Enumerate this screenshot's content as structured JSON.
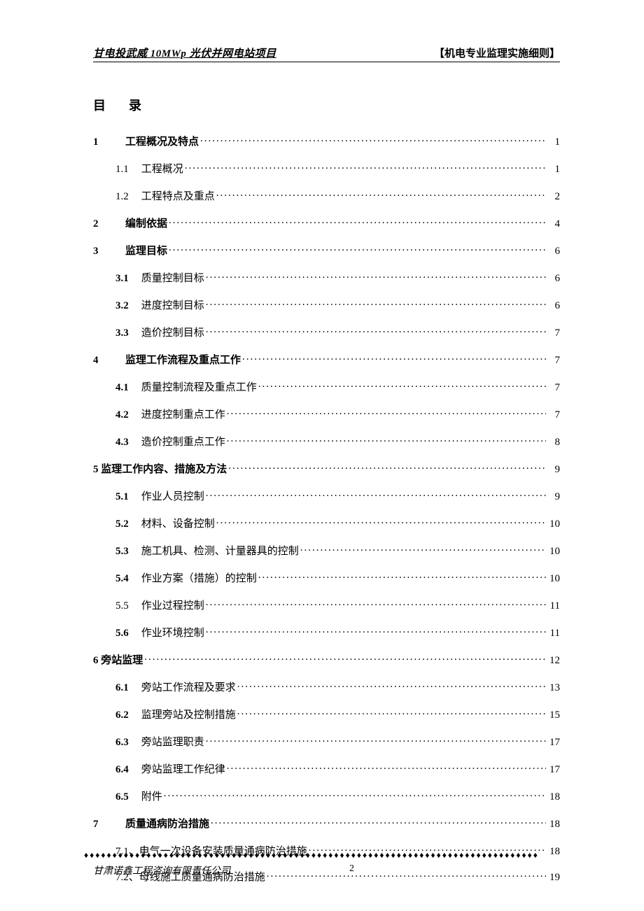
{
  "header": {
    "left": "甘电投武威 10MWp 光伏并网电站项目",
    "right": "【机电专业监理实施细则】"
  },
  "toc_title": "目 录",
  "toc": [
    {
      "level": 1,
      "num": "1",
      "text": "工程概况及特点",
      "page": "1",
      "bold": true,
      "numBold": true
    },
    {
      "level": 2,
      "num": "1.1",
      "text": "工程概况",
      "page": "1",
      "bold": false,
      "numBold": false
    },
    {
      "level": 2,
      "num": "1.2",
      "text": "工程特点及重点",
      "page": "2",
      "bold": false,
      "numBold": false
    },
    {
      "level": 1,
      "num": "2",
      "text": "编制依据",
      "page": "4",
      "bold": true,
      "numBold": true
    },
    {
      "level": 1,
      "num": "3",
      "text": "监理目标",
      "page": "6",
      "bold": true,
      "numBold": true
    },
    {
      "level": 2,
      "num": "3.1",
      "text": "质量控制目标",
      "page": "6",
      "bold": false,
      "numBold": true
    },
    {
      "level": 2,
      "num": "3.2",
      "text": "进度控制目标",
      "page": "6",
      "bold": false,
      "numBold": true
    },
    {
      "level": 2,
      "num": "3.3",
      "text": "造价控制目标",
      "page": "7",
      "bold": false,
      "numBold": true
    },
    {
      "level": 1,
      "num": "4",
      "text": "监理工作流程及重点工作",
      "page": "7",
      "bold": true,
      "numBold": true
    },
    {
      "level": 2,
      "num": "4.1",
      "text": "质量控制流程及重点工作",
      "page": "7",
      "bold": false,
      "numBold": true
    },
    {
      "level": 2,
      "num": "4.2",
      "text": "进度控制重点工作",
      "page": "7",
      "bold": false,
      "numBold": true
    },
    {
      "level": 2,
      "num": "4.3",
      "text": "造价控制重点工作",
      "page": "8",
      "bold": false,
      "numBold": true
    },
    {
      "level": 1,
      "num": "",
      "text": "5 监理工作内容、措施及方法",
      "page": "9",
      "bold": true,
      "numBold": true,
      "noNumCol": true
    },
    {
      "level": 2,
      "num": "5.1",
      "text": "作业人员控制",
      "page": "9",
      "bold": false,
      "numBold": true
    },
    {
      "level": 2,
      "num": "5.2",
      "text": "材料、设备控制",
      "page": "10",
      "bold": false,
      "numBold": true
    },
    {
      "level": 2,
      "num": "5.3",
      "text": "施工机具、检测、计量器具的控制",
      "page": "10",
      "bold": false,
      "numBold": true
    },
    {
      "level": 2,
      "num": "5.4",
      "text": "作业方案（措施）的控制",
      "page": "10",
      "bold": false,
      "numBold": true
    },
    {
      "level": 2,
      "num": "5.5",
      "text": "作业过程控制",
      "page": "11",
      "bold": false,
      "numBold": false
    },
    {
      "level": 2,
      "num": "5.6",
      "text": "作业环境控制",
      "page": "11",
      "bold": false,
      "numBold": true
    },
    {
      "level": 1,
      "num": "",
      "text": "6 旁站监理",
      "page": "12",
      "bold": true,
      "numBold": true,
      "noNumCol": true
    },
    {
      "level": 2,
      "num": "6.1",
      "text": "旁站工作流程及要求",
      "page": "13",
      "bold": false,
      "numBold": true
    },
    {
      "level": 2,
      "num": "6.2",
      "text": "监理旁站及控制措施",
      "page": "15",
      "bold": false,
      "numBold": true
    },
    {
      "level": 2,
      "num": "6.3",
      "text": "旁站监理职责",
      "page": "17",
      "bold": false,
      "numBold": true
    },
    {
      "level": 2,
      "num": "6.4",
      "text": "旁站监理工作纪律",
      "page": "17",
      "bold": false,
      "numBold": true
    },
    {
      "level": 2,
      "num": "6.5",
      "text": "附件",
      "page": "18",
      "bold": false,
      "numBold": true
    },
    {
      "level": 1,
      "num": "7",
      "text": "质量通病防治措施",
      "page": "18",
      "bold": true,
      "numBold": true
    },
    {
      "level": 2,
      "num": "",
      "text": "7.1、电气一次设备安装质量通病防治措施",
      "page": "18",
      "bold": false,
      "numBold": false,
      "noNumCol": true,
      "extraMargin": true
    },
    {
      "level": 2,
      "num": "",
      "text": "7.2、母线施工质量通病防治措施",
      "page": "19",
      "bold": false,
      "numBold": false,
      "noNumCol": true,
      "extraMargin": true
    }
  ],
  "footer": {
    "company": "甘肃诺鑫工程咨询有限责任公司",
    "pagenum": "2"
  },
  "colors": {
    "background": "#ffffff",
    "text": "#000000"
  },
  "typography": {
    "body_fontsize": 15,
    "title_fontsize": 18,
    "footer_fontsize": 14
  }
}
